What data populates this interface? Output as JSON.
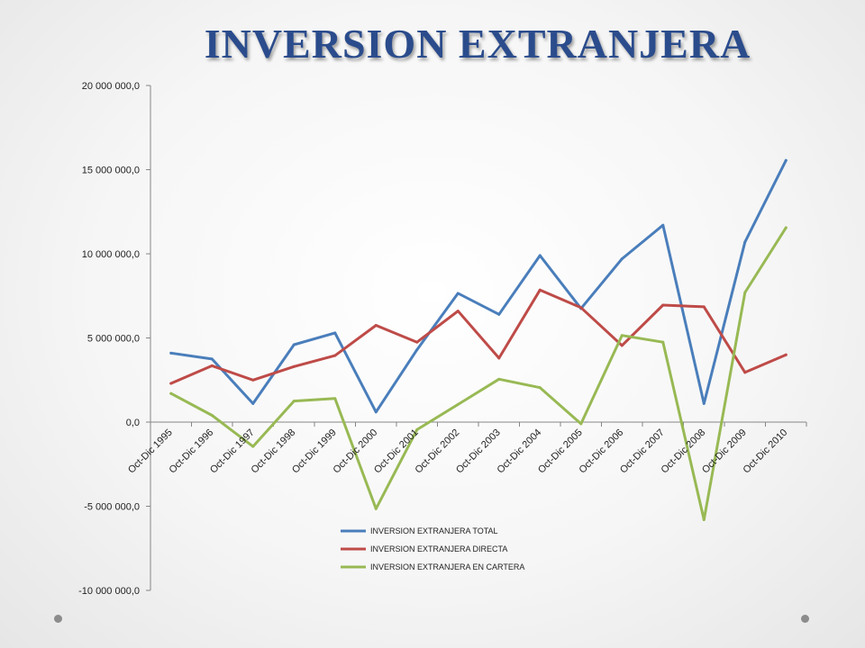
{
  "slide": {
    "title": "INVERSION EXTRANJERA"
  },
  "chart_data": {
    "type": "line",
    "title": "",
    "xlabel": "",
    "ylabel": "",
    "ylim": [
      -10000000,
      20000000
    ],
    "y_ticks": [
      -10000000,
      -5000000,
      0,
      5000000,
      10000000,
      15000000,
      20000000
    ],
    "y_tick_labels": [
      "-10 000 000,0",
      "-5 000 000,0",
      "0,0",
      "5 000 000,0",
      "10 000 000,0",
      "15 000 000,0",
      "20 000 000,0"
    ],
    "categories": [
      "Oct-Dic 1995",
      "Oct-Dic 1996",
      "Oct-Dic 1997",
      "Oct-Dic 1998",
      "Oct-Dic 1999",
      "Oct-Dic 2000",
      "Oct-Dic 2001",
      "Oct-Dic 2002",
      "Oct-Dic 2003",
      "Oct-Dic 2004",
      "Oct-Dic 2005",
      "Oct-Dic 2006",
      "Oct-Dic 2007",
      "Oct-Dic 2008",
      "Oct-Dic 2009",
      "Oct-Dic 2010"
    ],
    "grid": false,
    "legend_position": "bottom",
    "series": [
      {
        "name": "INVERSION EXTRANJERA TOTAL",
        "color": "#4a7ebb",
        "values": [
          4100000,
          3750000,
          1100000,
          4600000,
          5300000,
          600000,
          4300000,
          7650000,
          6400000,
          9900000,
          6750000,
          9700000,
          11700000,
          1100000,
          10700000,
          15550000
        ]
      },
      {
        "name": "INVERSION EXTRANJERA DIRECTA",
        "color": "#be4b48",
        "values": [
          2300000,
          3350000,
          2500000,
          3300000,
          3950000,
          5750000,
          4750000,
          6600000,
          3800000,
          7850000,
          6800000,
          4550000,
          6950000,
          6850000,
          2950000,
          4000000
        ]
      },
      {
        "name": "INVERSION EXTRANJERA EN CARTERA",
        "color": "#98b954",
        "values": [
          1700000,
          400000,
          -1450000,
          1250000,
          1400000,
          -5150000,
          -450000,
          1050000,
          2550000,
          2050000,
          -100000,
          5150000,
          4750000,
          -5800000,
          7700000,
          11550000
        ]
      }
    ]
  }
}
